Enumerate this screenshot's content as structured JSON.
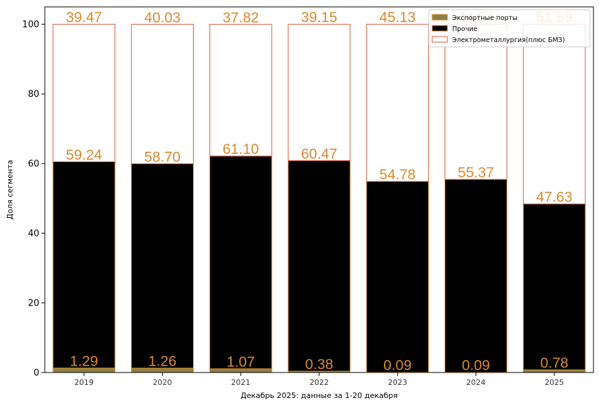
{
  "chart_data": {
    "type": "bar",
    "stacked": true,
    "categories": [
      "2019",
      "2020",
      "2021",
      "2022",
      "2023",
      "2024",
      "2025"
    ],
    "series": [
      {
        "name": "Экспортные порты",
        "color": "#8b8047",
        "edge": "#d9892e",
        "values": [
          1.29,
          1.26,
          1.07,
          0.38,
          0.09,
          0.09,
          0.78
        ]
      },
      {
        "name": "Прочие",
        "color": "#000000",
        "edge": "#d9892e",
        "values": [
          59.24,
          58.7,
          61.1,
          60.47,
          54.78,
          55.37,
          47.63
        ]
      },
      {
        "name": "Электрометаллургия(плюс БМЗ)",
        "color": "#ffffff",
        "edge": "#d9593b",
        "values": [
          39.47,
          40.03,
          37.82,
          39.15,
          45.13,
          44.54,
          51.59
        ]
      }
    ],
    "labels": {
      "bottom": [
        "1.29",
        "1.26",
        "1.07",
        "0.38",
        "0.09",
        "0.09",
        "0.78"
      ],
      "middle": [
        "59.24",
        "58.70",
        "61.10",
        "60.47",
        "54.78",
        "55.37",
        "47.63"
      ],
      "top": [
        "39.47",
        "40.03",
        "37.82",
        "39.15",
        "45.13",
        "44.54",
        "51.59"
      ]
    },
    "label_color": "#d9892e",
    "title": "",
    "xlabel": "Декабрь 2025: данные за 1-20 декабря",
    "ylabel": "Доля сегмента",
    "ylim": [
      0,
      105
    ],
    "yticks": [
      "0",
      "20",
      "40",
      "60",
      "80",
      "100"
    ],
    "grid": false,
    "legend_position": "top-right"
  }
}
